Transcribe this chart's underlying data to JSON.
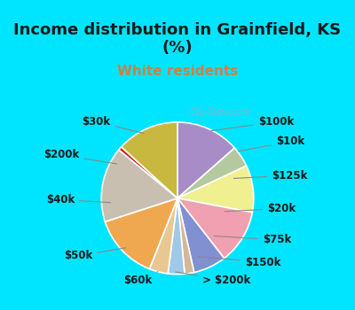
{
  "title": "Income distribution in Grainfield, KS\n(%)",
  "subtitle": "White residents",
  "title_color": "#1a1a1a",
  "subtitle_color": "#c8824a",
  "background_top": "#00e5ff",
  "background_chart": "#e8f5e9",
  "watermark": "City-Data.com",
  "labels": [
    "$100k",
    "$10k",
    "$125k",
    "$20k",
    "$75k",
    "$150k",
    "> $200k",
    "$60k",
    "$50k",
    "$40k",
    "$200k",
    "$30k"
  ],
  "values": [
    13.5,
    4.5,
    10.0,
    11.5,
    7.0,
    2.0,
    3.5,
    4.0,
    14.0,
    16.0,
    0.8,
    13.2
  ],
  "colors": [
    "#a78cc8",
    "#b5c9a0",
    "#f0f090",
    "#f0a0b0",
    "#8090d0",
    "#d4b898",
    "#a0c8e8",
    "#e8c890",
    "#f0a850",
    "#c8bfb0",
    "#cc2222",
    "#c8b840"
  ],
  "startangle": 90,
  "label_fontsize": 8.5,
  "label_color": "#1a1a1a"
}
